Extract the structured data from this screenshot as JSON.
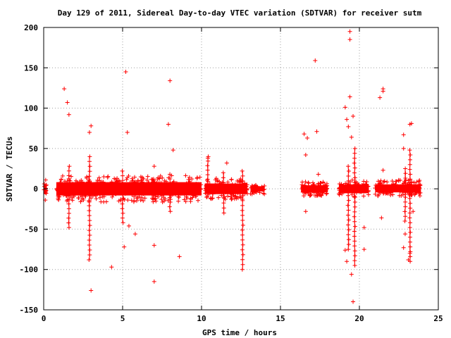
{
  "chart_data": {
    "type": "scatter",
    "title": "Day 129 of 2011, Sidereal Day-to-day VTEC variation (SDTVAR) for receiver sutm",
    "xlabel": "GPS time / hours",
    "ylabel": "SDTVAR / TECUs",
    "xlim": [
      0,
      25
    ],
    "ylim": [
      -150,
      200
    ],
    "xticks": [
      0,
      5,
      10,
      15,
      20,
      25
    ],
    "yticks": [
      -150,
      -100,
      -50,
      0,
      50,
      100,
      150,
      200
    ],
    "grid": true,
    "marker": "+",
    "color": "#ff0000",
    "dense_segments": [
      {
        "x_start": 0.0,
        "x_end": 0.2,
        "y_min": -12,
        "y_max": 10
      },
      {
        "x_start": 0.8,
        "x_end": 10.0,
        "y_min": -15,
        "y_max": 15
      },
      {
        "x_start": 10.2,
        "x_end": 12.9,
        "y_min": -12,
        "y_max": 12
      },
      {
        "x_start": 13.1,
        "x_end": 14.0,
        "y_min": -6,
        "y_max": 6
      },
      {
        "x_start": 16.3,
        "x_end": 18.0,
        "y_min": -8,
        "y_max": 8
      },
      {
        "x_start": 18.7,
        "x_end": 20.6,
        "y_min": -10,
        "y_max": 10
      },
      {
        "x_start": 21.0,
        "x_end": 23.9,
        "y_min": -8,
        "y_max": 10
      }
    ],
    "spikes": [
      {
        "x": 2.9,
        "y_min": -88,
        "y_max": 40
      },
      {
        "x": 1.6,
        "y_min": -48,
        "y_max": 28
      },
      {
        "x": 12.6,
        "y_min": -100,
        "y_max": 22
      },
      {
        "x": 19.7,
        "y_min": -95,
        "y_max": 50
      },
      {
        "x": 19.3,
        "y_min": -75,
        "y_max": 28
      },
      {
        "x": 23.2,
        "y_min": -90,
        "y_max": 48
      },
      {
        "x": 5.0,
        "y_min": -42,
        "y_max": 22
      },
      {
        "x": 8.0,
        "y_min": -28,
        "y_max": 18
      },
      {
        "x": 11.4,
        "y_min": -30,
        "y_max": 20
      },
      {
        "x": 10.4,
        "y_min": -5,
        "y_max": 40
      },
      {
        "x": 22.9,
        "y_min": -40,
        "y_max": 25
      }
    ],
    "outliers": [
      {
        "x": 1.3,
        "y": 124
      },
      {
        "x": 1.5,
        "y": 107
      },
      {
        "x": 1.6,
        "y": 92
      },
      {
        "x": 3.0,
        "y": 78
      },
      {
        "x": 2.9,
        "y": 70
      },
      {
        "x": 3.0,
        "y": -126
      },
      {
        "x": 4.3,
        "y": -97
      },
      {
        "x": 5.2,
        "y": 145
      },
      {
        "x": 5.3,
        "y": 70
      },
      {
        "x": 5.1,
        "y": -72
      },
      {
        "x": 5.4,
        "y": -46
      },
      {
        "x": 5.8,
        "y": -56
      },
      {
        "x": 7.0,
        "y": -115
      },
      {
        "x": 7.0,
        "y": -70
      },
      {
        "x": 7.0,
        "y": 28
      },
      {
        "x": 8.0,
        "y": 134
      },
      {
        "x": 7.9,
        "y": 80
      },
      {
        "x": 8.2,
        "y": 48
      },
      {
        "x": 8.6,
        "y": -84
      },
      {
        "x": 10.4,
        "y": 38
      },
      {
        "x": 11.6,
        "y": 32
      },
      {
        "x": 16.5,
        "y": 68
      },
      {
        "x": 16.7,
        "y": 63
      },
      {
        "x": 16.6,
        "y": 42
      },
      {
        "x": 16.6,
        "y": -28
      },
      {
        "x": 17.2,
        "y": 159
      },
      {
        "x": 17.3,
        "y": 71
      },
      {
        "x": 17.4,
        "y": 18
      },
      {
        "x": 19.4,
        "y": 195
      },
      {
        "x": 19.4,
        "y": 185
      },
      {
        "x": 19.4,
        "y": 114
      },
      {
        "x": 19.1,
        "y": 101
      },
      {
        "x": 19.2,
        "y": 86
      },
      {
        "x": 19.3,
        "y": 77
      },
      {
        "x": 19.6,
        "y": 90
      },
      {
        "x": 19.5,
        "y": 64
      },
      {
        "x": 19.6,
        "y": -140
      },
      {
        "x": 19.5,
        "y": -106
      },
      {
        "x": 19.2,
        "y": -90
      },
      {
        "x": 19.1,
        "y": -76
      },
      {
        "x": 20.3,
        "y": -48
      },
      {
        "x": 20.3,
        "y": -75
      },
      {
        "x": 21.3,
        "y": 113
      },
      {
        "x": 21.5,
        "y": 124
      },
      {
        "x": 21.5,
        "y": 121
      },
      {
        "x": 21.5,
        "y": 23
      },
      {
        "x": 21.4,
        "y": -36
      },
      {
        "x": 22.8,
        "y": 67
      },
      {
        "x": 22.8,
        "y": 50
      },
      {
        "x": 23.2,
        "y": 80
      },
      {
        "x": 23.3,
        "y": 81
      },
      {
        "x": 22.9,
        "y": -56
      },
      {
        "x": 22.8,
        "y": -73
      },
      {
        "x": 23.2,
        "y": -80
      },
      {
        "x": 23.1,
        "y": -88
      },
      {
        "x": 23.4,
        "y": -28
      },
      {
        "x": 0.1,
        "y": -14
      }
    ]
  }
}
